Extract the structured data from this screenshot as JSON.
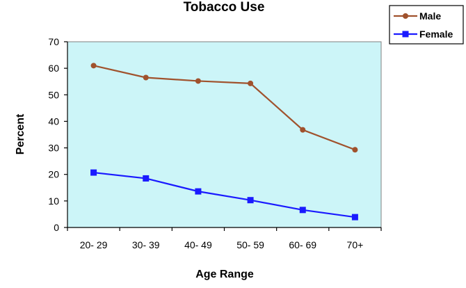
{
  "chart_data": {
    "type": "line",
    "title": "Tobacco Use",
    "xlabel": "Age Range",
    "ylabel": "Percent",
    "categories": [
      "20- 29",
      "30- 39",
      "40- 49",
      "50- 59",
      "60- 69",
      "70+"
    ],
    "ylim": [
      0,
      70
    ],
    "yticks": [
      0,
      10,
      20,
      30,
      40,
      50,
      60,
      70
    ],
    "grid": false,
    "legend_position": "top-right",
    "plot_background": "#ccf5f8",
    "series": [
      {
        "name": "Male",
        "values": [
          61,
          56.5,
          55.2,
          54.3,
          36.8,
          29.3
        ],
        "color": "#a0522d",
        "marker": "circle"
      },
      {
        "name": "Female",
        "values": [
          20.7,
          18.5,
          13.6,
          10.3,
          6.6,
          3.9
        ],
        "color": "#1a1aff",
        "marker": "square"
      }
    ]
  }
}
